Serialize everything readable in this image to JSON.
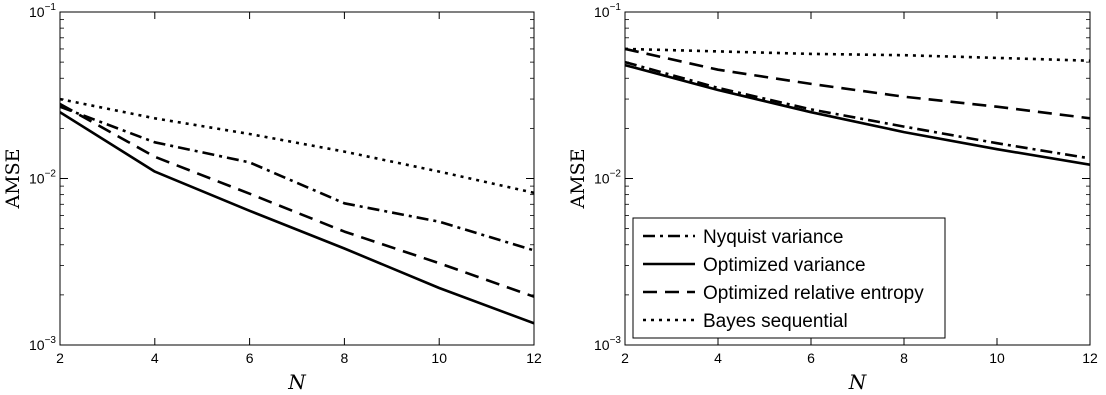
{
  "chart_data": [
    {
      "type": "line",
      "xlabel": "N",
      "ylabel": "AMSE",
      "xlim": [
        2,
        12
      ],
      "ylim": [
        0.001,
        0.1
      ],
      "yscale": "log",
      "xticks": [
        2,
        4,
        6,
        8,
        10,
        12
      ],
      "yticks": [
        {
          "value": 0.001,
          "base": "10",
          "exp": "−3"
        },
        {
          "value": 0.01,
          "base": "10",
          "exp": "−2"
        },
        {
          "value": 0.1,
          "base": "10",
          "exp": "−1"
        }
      ],
      "grid": false,
      "legend": null,
      "series": [
        {
          "name": "Nyquist variance",
          "dash": "dashdot",
          "x": [
            2,
            4,
            6,
            8,
            10,
            12
          ],
          "y": [
            0.027,
            0.0165,
            0.0125,
            0.0071,
            0.0055,
            0.0037
          ]
        },
        {
          "name": "Optimized variance",
          "dash": "solid",
          "x": [
            2,
            4,
            6,
            8,
            10,
            12
          ],
          "y": [
            0.025,
            0.011,
            0.0064,
            0.0038,
            0.0022,
            0.00135
          ]
        },
        {
          "name": "Optimized relative entropy",
          "dash": "dashed",
          "x": [
            2,
            4,
            6,
            8,
            10,
            12
          ],
          "y": [
            0.028,
            0.0135,
            0.0081,
            0.0048,
            0.0031,
            0.00195
          ]
        },
        {
          "name": "Bayes sequential",
          "dash": "dotted",
          "x": [
            2,
            4,
            6,
            8,
            10,
            12
          ],
          "y": [
            0.03,
            0.023,
            0.0185,
            0.0145,
            0.011,
            0.0082
          ]
        }
      ]
    },
    {
      "type": "line",
      "xlabel": "N",
      "ylabel": "AMSE",
      "xlim": [
        2,
        12
      ],
      "ylim": [
        0.001,
        0.1
      ],
      "yscale": "log",
      "xticks": [
        2,
        4,
        6,
        8,
        10,
        12
      ],
      "yticks": [
        {
          "value": 0.001,
          "base": "10",
          "exp": "−3"
        },
        {
          "value": 0.01,
          "base": "10",
          "exp": "−2"
        },
        {
          "value": 0.1,
          "base": "10",
          "exp": "−1"
        }
      ],
      "grid": false,
      "legend": "bottom-left",
      "series": [
        {
          "name": "Nyquist variance",
          "dash": "dashdot",
          "x": [
            2,
            4,
            6,
            8,
            10,
            12
          ],
          "y": [
            0.05,
            0.035,
            0.026,
            0.0205,
            0.0163,
            0.0132
          ]
        },
        {
          "name": "Optimized variance",
          "dash": "solid",
          "x": [
            2,
            4,
            6,
            8,
            10,
            12
          ],
          "y": [
            0.048,
            0.034,
            0.025,
            0.019,
            0.015,
            0.0121
          ]
        },
        {
          "name": "Optimized relative entropy",
          "dash": "dashed",
          "x": [
            2,
            4,
            6,
            8,
            10,
            12
          ],
          "y": [
            0.06,
            0.045,
            0.037,
            0.031,
            0.027,
            0.023
          ]
        },
        {
          "name": "Bayes sequential",
          "dash": "dotted",
          "x": [
            2,
            4,
            6,
            8,
            10,
            12
          ],
          "y": [
            0.06,
            0.058,
            0.056,
            0.055,
            0.053,
            0.051
          ]
        }
      ]
    }
  ]
}
